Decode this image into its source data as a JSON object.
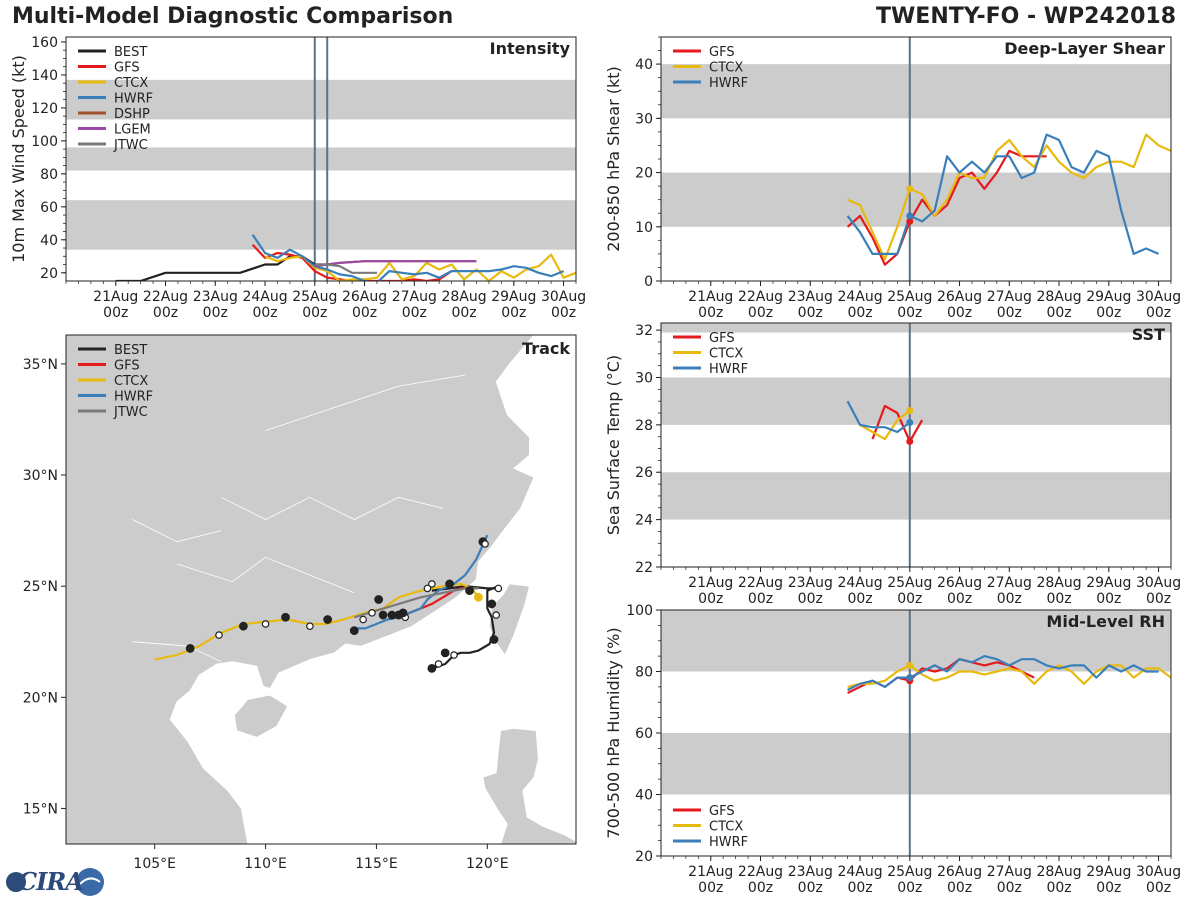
{
  "title_left": "Multi-Model Diagnostic Comparison",
  "title_right": "TWENTY-FO - WP242018",
  "logo_text": "CIRA",
  "colors": {
    "BEST": "#222222",
    "GFS": "#e41a1c",
    "CTCX": "#e8b90e",
    "HWRF": "#3a7fba",
    "DSHP": "#a0522d",
    "LGEM": "#9b4aa6",
    "JTWC": "#7a7a7a",
    "band": "#cccccc",
    "land": "#cccccc",
    "vline": "#5f7282"
  },
  "time_ticks": [
    "21Aug\n00z",
    "22Aug\n00z",
    "23Aug\n00z",
    "24Aug\n00z",
    "25Aug\n00z",
    "26Aug\n00z",
    "27Aug\n00z",
    "28Aug\n00z",
    "29Aug\n00z",
    "30Aug\n00z"
  ],
  "chart_data": [
    {
      "id": "intensity",
      "type": "line",
      "title": "Intensity",
      "ylabel": "10m Max Wind Speed (kt)",
      "ylim": [
        15,
        163
      ],
      "xlim": [
        20.0,
        30.25
      ],
      "yticks": [
        20,
        40,
        60,
        80,
        100,
        120,
        140,
        160
      ],
      "bands": [
        [
          34,
          64
        ],
        [
          82,
          96
        ],
        [
          113,
          137
        ]
      ],
      "vlines": [
        25.0,
        25.25
      ],
      "legend": [
        "BEST",
        "GFS",
        "CTCX",
        "HWRF",
        "DSHP",
        "LGEM",
        "JTWC"
      ],
      "series": [
        {
          "name": "BEST",
          "x": [
            21.0,
            21.5,
            22.0,
            22.5,
            23.0,
            23.5,
            24.0,
            24.25,
            24.5,
            24.75,
            25.0,
            25.25
          ],
          "y": [
            15,
            15,
            20,
            20,
            20,
            20,
            25,
            25,
            30,
            30,
            25,
            25
          ]
        },
        {
          "name": "GFS",
          "x": [
            23.75,
            24.0,
            24.25,
            24.5,
            24.75,
            25.0,
            25.25,
            25.5,
            25.75,
            26.0,
            26.25,
            26.5,
            26.75,
            27.0,
            27.25,
            27.5,
            27.75
          ],
          "y": [
            37,
            29,
            32,
            31,
            29,
            21,
            17,
            16,
            15,
            15,
            15,
            15,
            15,
            16,
            15,
            16,
            21
          ]
        },
        {
          "name": "CTCX",
          "x": [
            24.0,
            24.25,
            24.5,
            24.75,
            25.0,
            25.25,
            25.5,
            25.75,
            26.0,
            26.25,
            26.5,
            26.75,
            27.0,
            27.25,
            27.5,
            27.75,
            28.0,
            28.25,
            28.5,
            28.75,
            29.0,
            29.25,
            29.5,
            29.75,
            30.0,
            30.25
          ],
          "y": [
            30,
            27,
            29,
            30,
            23,
            21,
            15,
            16,
            16,
            17,
            26,
            16,
            18,
            26,
            22,
            25,
            16,
            22,
            15,
            21,
            17,
            22,
            24,
            31,
            17,
            20
          ]
        },
        {
          "name": "HWRF",
          "x": [
            23.75,
            24.0,
            24.25,
            24.5,
            24.75,
            25.0,
            25.25,
            25.5,
            25.75,
            26.0,
            26.25,
            26.5,
            26.75,
            27.0,
            27.25,
            27.5,
            27.75,
            28.0,
            28.25,
            28.5,
            28.75,
            29.0,
            29.25,
            29.5,
            29.75,
            30.0
          ],
          "y": [
            43,
            32,
            29,
            34,
            30,
            24,
            22,
            19,
            18,
            15,
            14,
            21,
            20,
            19,
            20,
            17,
            21,
            21,
            21,
            21,
            22,
            24,
            23,
            20,
            18,
            21
          ]
        },
        {
          "name": "DSHP",
          "x": [
            25.0,
            25.5,
            26.0,
            26.5,
            27.0,
            27.5,
            28.0,
            28.25
          ],
          "y": [
            24,
            26,
            27,
            27,
            27,
            27,
            27,
            27
          ]
        },
        {
          "name": "LGEM",
          "x": [
            25.0,
            25.5,
            26.0,
            26.5,
            27.0,
            27.5,
            28.0,
            28.25
          ],
          "y": [
            24,
            26,
            27,
            27,
            27,
            27,
            27,
            27
          ]
        },
        {
          "name": "JTWC",
          "x": [
            25.0,
            25.25,
            25.5,
            25.75,
            26.0,
            26.25
          ],
          "y": [
            25,
            25,
            24,
            20,
            20,
            20
          ]
        }
      ]
    },
    {
      "id": "shear",
      "type": "line",
      "title": "Deep-Layer Shear",
      "ylabel": "200-850 hPa Shear (kt)",
      "ylim": [
        0,
        45
      ],
      "xlim": [
        20.0,
        30.25
      ],
      "yticks": [
        0,
        10,
        20,
        30,
        40
      ],
      "bands": [
        [
          10,
          20
        ],
        [
          30,
          40
        ]
      ],
      "vlines": [
        25.0
      ],
      "legend": [
        "GFS",
        "CTCX",
        "HWRF"
      ],
      "series": [
        {
          "name": "GFS",
          "x": [
            23.75,
            24.0,
            24.25,
            24.5,
            24.75,
            25.0,
            25.25,
            25.5,
            25.75,
            26.0,
            26.25,
            26.5,
            26.75,
            27.0,
            27.25,
            27.5,
            27.75
          ],
          "y": [
            10,
            12,
            8,
            3,
            5,
            11,
            15,
            12,
            14,
            19,
            20,
            17,
            20,
            24,
            23,
            23,
            23
          ]
        },
        {
          "name": "CTCX",
          "x": [
            23.75,
            24.0,
            24.25,
            24.5,
            24.75,
            25.0,
            25.25,
            25.5,
            25.75,
            26.0,
            26.25,
            26.5,
            26.75,
            27.0,
            27.25,
            27.5,
            27.75,
            28.0,
            28.25,
            28.5,
            28.75,
            29.0,
            29.25,
            29.5,
            29.75,
            30.0,
            30.25
          ],
          "y": [
            15,
            14,
            9,
            4,
            10,
            17,
            16,
            12,
            15,
            20,
            19,
            19,
            24,
            26,
            23,
            21,
            25,
            22,
            20,
            19,
            21,
            22,
            22,
            21,
            27,
            25,
            24
          ]
        },
        {
          "name": "HWRF",
          "x": [
            23.75,
            24.0,
            24.25,
            24.5,
            24.75,
            25.0,
            25.25,
            25.5,
            25.75,
            26.0,
            26.25,
            26.5,
            26.75,
            27.0,
            27.25,
            27.5,
            27.75,
            28.0,
            28.25,
            28.5,
            28.75,
            29.0,
            29.25,
            29.5,
            29.75,
            30.0
          ],
          "y": [
            12,
            9,
            5,
            5,
            5,
            12,
            11,
            13,
            23,
            20,
            22,
            20,
            23,
            23,
            19,
            20,
            27,
            26,
            21,
            20,
            24,
            23,
            13,
            5,
            6,
            5
          ]
        }
      ]
    },
    {
      "id": "sst",
      "type": "line",
      "title": "SST",
      "ylabel": "Sea Surface Temp (°C)",
      "ylim": [
        22,
        32.3
      ],
      "xlim": [
        20.0,
        30.25
      ],
      "yticks": [
        22,
        24,
        26,
        28,
        30,
        32
      ],
      "bands": [
        [
          24,
          26
        ],
        [
          28,
          30
        ],
        [
          31.9,
          32.3
        ]
      ],
      "vlines": [
        25.0
      ],
      "legend": [
        "GFS",
        "CTCX",
        "HWRF"
      ],
      "series": [
        {
          "name": "GFS",
          "x": [
            24.25,
            24.5,
            24.75,
            25.0,
            25.25
          ],
          "y": [
            27.4,
            28.8,
            28.5,
            27.3,
            28.2
          ]
        },
        {
          "name": "CTCX",
          "x": [
            24.0,
            24.25,
            24.5,
            24.75,
            25.0
          ],
          "y": [
            28.0,
            27.7,
            27.4,
            28.2,
            28.6
          ]
        },
        {
          "name": "HWRF",
          "x": [
            23.75,
            24.0,
            24.25,
            24.5,
            24.75,
            25.0
          ],
          "y": [
            29.0,
            28.0,
            27.9,
            27.9,
            27.7,
            28.1
          ]
        }
      ]
    },
    {
      "id": "rh",
      "type": "line",
      "title": "Mid-Level RH",
      "ylabel": "700-500 hPa Humidity (%)",
      "ylim": [
        20,
        100
      ],
      "xlim": [
        20.0,
        30.25
      ],
      "yticks": [
        20,
        40,
        60,
        80,
        100
      ],
      "bands": [
        [
          40,
          60
        ],
        [
          80,
          100
        ]
      ],
      "vlines": [
        25.0
      ],
      "legend": [
        "GFS",
        "CTCX",
        "HWRF"
      ],
      "legend_pos": "bottom-left",
      "series": [
        {
          "name": "GFS",
          "x": [
            23.75,
            24.0,
            24.25,
            24.5,
            24.75,
            25.0,
            25.25,
            25.5,
            25.75,
            26.0,
            26.25,
            26.5,
            26.75,
            27.0,
            27.25,
            27.5
          ],
          "y": [
            73,
            75,
            77,
            75,
            78,
            77,
            81,
            80,
            81,
            84,
            83,
            82,
            83,
            82,
            80,
            78
          ]
        },
        {
          "name": "CTCX",
          "x": [
            23.75,
            24.0,
            24.25,
            24.5,
            24.75,
            25.0,
            25.25,
            25.5,
            25.75,
            26.0,
            26.25,
            26.5,
            26.75,
            27.0,
            27.25,
            27.5,
            27.75,
            28.0,
            28.25,
            28.5,
            28.75,
            29.0,
            29.25,
            29.5,
            29.75,
            30.0,
            30.25
          ],
          "y": [
            75,
            76,
            76,
            77,
            80,
            82,
            79,
            77,
            78,
            80,
            80,
            79,
            80,
            81,
            80,
            76,
            80,
            82,
            80,
            76,
            80,
            82,
            82,
            78,
            81,
            81,
            78
          ]
        },
        {
          "name": "HWRF",
          "x": [
            23.75,
            24.0,
            24.25,
            24.5,
            24.75,
            25.0,
            25.25,
            25.5,
            25.75,
            26.0,
            26.25,
            26.5,
            26.75,
            27.0,
            27.25,
            27.5,
            27.75,
            28.0,
            28.25,
            28.5,
            28.75,
            29.0,
            29.25,
            29.5,
            29.75,
            30.0
          ],
          "y": [
            74,
            76,
            77,
            75,
            78,
            78,
            80,
            82,
            80,
            84,
            83,
            85,
            84,
            82,
            84,
            84,
            82,
            81,
            82,
            82,
            78,
            82,
            80,
            82,
            80,
            80
          ]
        }
      ]
    }
  ],
  "track": {
    "title": "Track",
    "legend": [
      "BEST",
      "GFS",
      "CTCX",
      "HWRF",
      "JTWC"
    ],
    "xlim": [
      101.0,
      124.0
    ],
    "ylim": [
      13.4,
      36.3
    ],
    "xticks": [
      105,
      110,
      115,
      120
    ],
    "xtick_labels": [
      "105°E",
      "110°E",
      "115°E",
      "120°E"
    ],
    "yticks": [
      15,
      20,
      25,
      30,
      35
    ],
    "ytick_labels": [
      "15°N",
      "20°N",
      "25°N",
      "30°N",
      "35°N"
    ],
    "series": [
      {
        "name": "BEST",
        "lon": [
          117.5,
          117.8,
          118.1,
          118.5,
          118.8,
          119.2,
          119.6,
          120.1,
          120.3,
          120.2,
          120.0,
          120.0,
          120.5,
          120.5,
          120.0,
          119.0,
          118.3,
          117.5
        ],
        "lat": [
          21.3,
          21.4,
          21.5,
          21.9,
          22.0,
          22.0,
          22.1,
          22.4,
          22.9,
          23.6,
          24.0,
          24.8,
          25.0,
          24.9,
          24.9,
          25.0,
          24.9,
          24.8
        ]
      },
      {
        "name": "GFS",
        "lon": [
          119.2,
          118.8,
          118.5,
          118.0,
          117.5,
          117.0,
          116.5,
          116.0,
          115.6
        ],
        "lat": [
          24.9,
          24.9,
          24.8,
          24.5,
          24.2,
          24.0,
          23.8,
          23.6,
          23.6
        ]
      },
      {
        "name": "CTCX",
        "lon": [
          119.6,
          119.3,
          118.8,
          118.0,
          117.0,
          116.0,
          115.3,
          114.5,
          113.5,
          112.7,
          112.0,
          111.0,
          110.0,
          109.0,
          108.0,
          107.0,
          106.0,
          105.0
        ],
        "lat": [
          24.5,
          24.9,
          25.1,
          25.0,
          24.8,
          24.5,
          24.0,
          23.8,
          23.5,
          23.3,
          23.3,
          23.5,
          23.4,
          23.3,
          22.9,
          22.3,
          21.9,
          21.7
        ]
      },
      {
        "name": "HWRF",
        "lon": [
          120.0,
          119.5,
          119.0,
          118.5,
          117.8,
          117.3,
          117.0,
          116.5,
          116.0,
          115.5,
          115.0,
          114.5,
          114.0
        ],
        "lat": [
          27.3,
          26.2,
          25.5,
          25.1,
          24.8,
          24.4,
          24.0,
          23.8,
          23.6,
          23.5,
          23.3,
          23.1,
          23.1
        ]
      },
      {
        "name": "JTWC",
        "lon": [
          119.6,
          119.0,
          118.0,
          117.0,
          116.0,
          115.0,
          114.0
        ],
        "lat": [
          24.9,
          24.9,
          24.7,
          24.5,
          24.2,
          23.9,
          23.6
        ]
      },
      {
        "name": "BEST_N",
        "lon": [
          119.8,
          119.9
        ],
        "lat": [
          27.0,
          26.8
        ]
      }
    ],
    "markers": [
      {
        "lon": 117.5,
        "lat": 21.3,
        "filled": true
      },
      {
        "lon": 117.8,
        "lat": 21.5,
        "filled": false
      },
      {
        "lon": 118.1,
        "lat": 22.0,
        "filled": true
      },
      {
        "lon": 118.5,
        "lat": 21.9,
        "filled": false
      },
      {
        "lon": 120.3,
        "lat": 22.6,
        "filled": true
      },
      {
        "lon": 120.4,
        "lat": 23.7,
        "filled": false
      },
      {
        "lon": 120.2,
        "lat": 24.2,
        "filled": true
      },
      {
        "lon": 120.5,
        "lat": 24.9,
        "filled": false
      },
      {
        "lon": 118.3,
        "lat": 25.1,
        "filled": true
      },
      {
        "lon": 117.5,
        "lat": 25.1,
        "filled": false
      },
      {
        "lon": 117.3,
        "lat": 24.9,
        "filled": false
      },
      {
        "lon": 119.2,
        "lat": 24.8,
        "filled": true
      },
      {
        "lon": 119.8,
        "lat": 27.0,
        "filled": true
      },
      {
        "lon": 119.9,
        "lat": 26.9,
        "filled": false
      },
      {
        "lon": 116.0,
        "lat": 23.7,
        "filled": true
      },
      {
        "lon": 116.3,
        "lat": 23.6,
        "filled": false
      },
      {
        "lon": 116.2,
        "lat": 23.8,
        "filled": true
      },
      {
        "lon": 115.7,
        "lat": 23.7,
        "filled": true
      },
      {
        "lon": 115.3,
        "lat": 23.7,
        "filled": true
      },
      {
        "lon": 115.1,
        "lat": 24.4,
        "filled": true
      },
      {
        "lon": 114.8,
        "lat": 23.8,
        "filled": false
      },
      {
        "lon": 114.4,
        "lat": 23.5,
        "filled": false
      },
      {
        "lon": 114.0,
        "lat": 23.0,
        "filled": true
      },
      {
        "lon": 112.8,
        "lat": 23.5,
        "filled": true
      },
      {
        "lon": 112.0,
        "lat": 23.2,
        "filled": false
      },
      {
        "lon": 110.9,
        "lat": 23.6,
        "filled": true
      },
      {
        "lon": 110.0,
        "lat": 23.3,
        "filled": false
      },
      {
        "lon": 109.0,
        "lat": 23.2,
        "filled": true
      },
      {
        "lon": 107.9,
        "lat": 22.8,
        "filled": false
      },
      {
        "lon": 106.6,
        "lat": 22.2,
        "filled": true
      },
      {
        "lon": 119.6,
        "lat": 24.5,
        "filled": true,
        "color": "CTCX"
      }
    ]
  }
}
